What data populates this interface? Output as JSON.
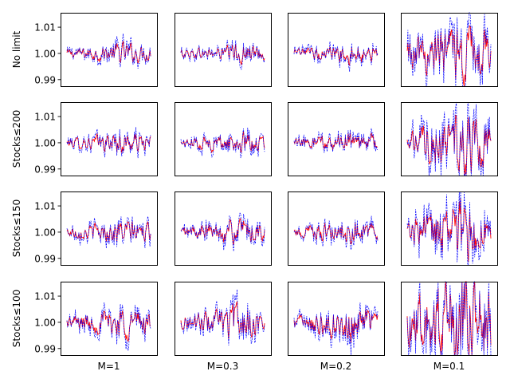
{
  "chart_data": {
    "type": "line",
    "layout": "grid of small multiples (4 rows x 4 columns)",
    "row_labels": [
      "No limit",
      "Stocks≤200",
      "Stocks≤150",
      "Stocks≤100"
    ],
    "column_labels": [
      "M=1",
      "M=0.3",
      "M=0.2",
      "M=0.1"
    ],
    "ylim": [
      0.9875,
      1.0155
    ],
    "yticks": [
      "0.99",
      "1.00",
      "1.01"
    ],
    "x": "unlabeled index (no x tick labels)",
    "grid": false,
    "legend": "none",
    "series_styles": [
      {
        "color": "#ff0000",
        "style": "solid"
      },
      {
        "color": "#0000ff",
        "style": "dashed"
      }
    ],
    "amplitude_grid": [
      [
        0.003,
        0.0028,
        0.003,
        0.0085
      ],
      [
        0.0032,
        0.003,
        0.0032,
        0.0088
      ],
      [
        0.0035,
        0.0036,
        0.0034,
        0.009
      ],
      [
        0.0045,
        0.0048,
        0.0052,
        0.015
      ]
    ],
    "points_per_series": 120
  }
}
